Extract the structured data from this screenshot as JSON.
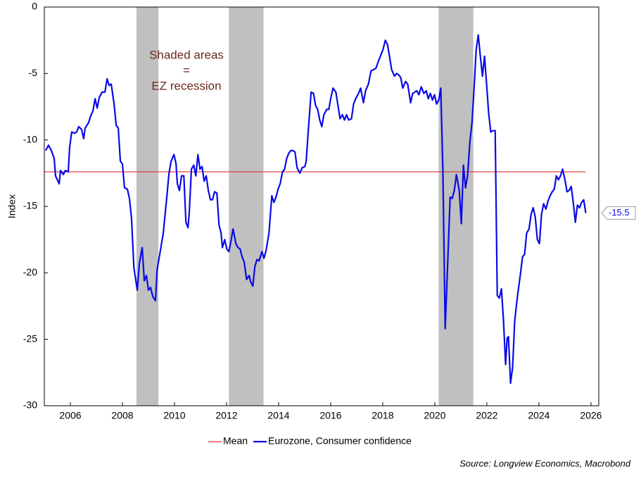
{
  "chart_data": {
    "type": "line",
    "y_label": "Index",
    "source": "Source: Longview Economics, Macrobond",
    "annotation": [
      "Shaded areas",
      "=",
      "EZ recession"
    ],
    "annotation_color": "#6b2a20",
    "shaded_regions": [
      [
        2008.54,
        2009.38
      ],
      [
        2012.09,
        2013.42
      ],
      [
        2020.15,
        2021.48
      ]
    ],
    "shade_color": "#c0c0c0",
    "xlim": [
      2005,
      2026.3
    ],
    "xticks": [
      2006,
      2008,
      2010,
      2012,
      2014,
      2016,
      2018,
      2020,
      2022,
      2024,
      2026
    ],
    "ylim": [
      -30,
      0
    ],
    "yticks": [
      0,
      -5,
      -10,
      -15,
      -20,
      -25,
      -30
    ],
    "end_label": -15.5,
    "mean": {
      "name": "Mean",
      "color": "#e0302a",
      "value": -12.4
    },
    "x": [
      2005.05,
      2005.16,
      2005.27,
      2005.38,
      2005.43,
      2005.57,
      2005.62,
      2005.73,
      2005.81,
      2005.92,
      2005.97,
      2006.05,
      2006.16,
      2006.24,
      2006.32,
      2006.43,
      2006.51,
      2006.57,
      2006.7,
      2006.78,
      2006.87,
      2006.95,
      2007.03,
      2007.11,
      2007.22,
      2007.33,
      2007.41,
      2007.49,
      2007.57,
      2007.68,
      2007.76,
      2007.84,
      2007.92,
      2008.0,
      2008.08,
      2008.19,
      2008.27,
      2008.35,
      2008.44,
      2008.57,
      2008.65,
      2008.76,
      2008.84,
      2008.92,
      2009.0,
      2009.08,
      2009.17,
      2009.27,
      2009.33,
      2009.46,
      2009.57,
      2009.68,
      2009.79,
      2009.87,
      2009.98,
      2010.06,
      2010.11,
      2010.19,
      2010.27,
      2010.36,
      2010.44,
      2010.52,
      2010.57,
      2010.65,
      2010.74,
      2010.82,
      2010.9,
      2010.98,
      2011.06,
      2011.14,
      2011.22,
      2011.3,
      2011.38,
      2011.46,
      2011.54,
      2011.63,
      2011.71,
      2011.79,
      2011.84,
      2011.93,
      2012.01,
      2012.09,
      2012.17,
      2012.25,
      2012.36,
      2012.44,
      2012.52,
      2012.6,
      2012.68,
      2012.77,
      2012.87,
      2012.93,
      2013.01,
      2013.09,
      2013.17,
      2013.25,
      2013.36,
      2013.44,
      2013.52,
      2013.63,
      2013.74,
      2013.82,
      2013.9,
      2013.98,
      2014.06,
      2014.15,
      2014.23,
      2014.31,
      2014.39,
      2014.47,
      2014.55,
      2014.63,
      2014.71,
      2014.82,
      2014.9,
      2015.01,
      2015.06,
      2015.14,
      2015.25,
      2015.34,
      2015.42,
      2015.5,
      2015.58,
      2015.66,
      2015.74,
      2015.85,
      2015.93,
      2015.99,
      2016.09,
      2016.2,
      2016.28,
      2016.36,
      2016.45,
      2016.53,
      2016.61,
      2016.69,
      2016.8,
      2016.88,
      2016.96,
      2017.07,
      2017.15,
      2017.26,
      2017.34,
      2017.45,
      2017.55,
      2017.66,
      2017.74,
      2017.83,
      2017.93,
      2018.01,
      2018.1,
      2018.18,
      2018.26,
      2018.34,
      2018.45,
      2018.53,
      2018.61,
      2018.69,
      2018.77,
      2018.88,
      2018.96,
      2019.07,
      2019.15,
      2019.23,
      2019.31,
      2019.39,
      2019.48,
      2019.58,
      2019.67,
      2019.75,
      2019.83,
      2019.91,
      2019.99,
      2020.07,
      2020.15,
      2020.23,
      2020.31,
      2020.4,
      2020.48,
      2020.59,
      2020.67,
      2020.75,
      2020.83,
      2020.94,
      2021.02,
      2021.1,
      2021.18,
      2021.26,
      2021.35,
      2021.43,
      2021.51,
      2021.59,
      2021.67,
      2021.75,
      2021.83,
      2021.91,
      2021.99,
      2022.07,
      2022.15,
      2022.24,
      2022.32,
      2022.4,
      2022.48,
      2022.56,
      2022.64,
      2022.72,
      2022.78,
      2022.83,
      2022.91,
      2022.99,
      2023.07,
      2023.18,
      2023.29,
      2023.37,
      2023.45,
      2023.53,
      2023.62,
      2023.7,
      2023.78,
      2023.86,
      2023.94,
      2024.02,
      2024.1,
      2024.18,
      2024.27,
      2024.35,
      2024.43,
      2024.51,
      2024.59,
      2024.67,
      2024.75,
      2024.83,
      2024.91,
      2025.0,
      2025.08,
      2025.16,
      2025.24,
      2025.32,
      2025.4,
      2025.48,
      2025.56,
      2025.64,
      2025.72,
      2025.8
    ],
    "series": [
      {
        "name": "Eurozone, Consumer confidence",
        "color": "#0a0ae6",
        "values": [
          -10.8,
          -10.4,
          -10.8,
          -11.4,
          -12.7,
          -13.3,
          -12.3,
          -12.6,
          -12.3,
          -12.4,
          -10.6,
          -9.4,
          -9.5,
          -9.4,
          -9.0,
          -9.2,
          -9.9,
          -9.1,
          -8.7,
          -8.2,
          -7.8,
          -6.9,
          -7.6,
          -6.8,
          -6.4,
          -6.4,
          -5.4,
          -5.9,
          -5.8,
          -7.3,
          -8.9,
          -9.1,
          -11.6,
          -11.8,
          -13.6,
          -13.7,
          -14.4,
          -15.9,
          -19.6,
          -21.3,
          -19.3,
          -18.1,
          -20.6,
          -20.2,
          -21.3,
          -21.1,
          -21.8,
          -22.1,
          -19.8,
          -18.3,
          -17.0,
          -14.8,
          -12.5,
          -11.6,
          -11.1,
          -11.8,
          -13.3,
          -13.8,
          -12.7,
          -12.7,
          -16.2,
          -16.6,
          -15.4,
          -12.2,
          -11.9,
          -12.7,
          -11.1,
          -12.2,
          -12.0,
          -13.1,
          -12.7,
          -13.8,
          -14.5,
          -14.5,
          -13.9,
          -14.0,
          -16.4,
          -17.0,
          -18.1,
          -17.5,
          -18.2,
          -18.4,
          -17.6,
          -16.7,
          -17.8,
          -18.1,
          -18.2,
          -18.8,
          -19.2,
          -20.5,
          -20.2,
          -20.7,
          -21.0,
          -19.5,
          -19.0,
          -19.1,
          -18.4,
          -18.9,
          -18.3,
          -17.0,
          -14.2,
          -14.7,
          -14.3,
          -13.7,
          -13.3,
          -12.4,
          -12.2,
          -11.4,
          -11.0,
          -10.8,
          -10.8,
          -10.9,
          -12.1,
          -12.5,
          -12.1,
          -12.0,
          -11.6,
          -9.3,
          -6.4,
          -6.5,
          -7.4,
          -7.7,
          -8.5,
          -9.0,
          -8.1,
          -7.7,
          -7.7,
          -7.0,
          -6.1,
          -6.4,
          -7.4,
          -8.4,
          -8.1,
          -8.5,
          -8.1,
          -8.5,
          -8.4,
          -7.3,
          -6.9,
          -6.5,
          -6.1,
          -7.2,
          -6.3,
          -5.8,
          -4.8,
          -4.7,
          -4.6,
          -4.1,
          -3.6,
          -3.2,
          -2.5,
          -2.8,
          -3.7,
          -4.7,
          -5.2,
          -5.0,
          -5.1,
          -5.3,
          -6.1,
          -5.6,
          -5.8,
          -7.2,
          -6.5,
          -6.4,
          -6.3,
          -6.6,
          -6.0,
          -6.5,
          -6.3,
          -6.9,
          -6.5,
          -7.0,
          -6.6,
          -7.3,
          -7.0,
          -6.1,
          -12.2,
          -24.2,
          -20.1,
          -14.3,
          -14.4,
          -13.8,
          -12.6,
          -13.8,
          -16.3,
          -11.9,
          -13.6,
          -12.7,
          -10.1,
          -8.7,
          -6.1,
          -3.2,
          -2.1,
          -3.7,
          -5.2,
          -3.7,
          -5.8,
          -8.0,
          -9.4,
          -9.3,
          -9.3,
          -21.7,
          -21.9,
          -21.2,
          -23.6,
          -26.9,
          -24.9,
          -24.8,
          -28.3,
          -27.1,
          -23.6,
          -21.7,
          -20.1,
          -18.8,
          -18.6,
          -17.0,
          -16.7,
          -15.6,
          -15.1,
          -15.8,
          -17.5,
          -17.8,
          -15.6,
          -14.8,
          -15.2,
          -14.6,
          -14.2,
          -13.9,
          -13.7,
          -12.7,
          -13.0,
          -12.7,
          -12.2,
          -13.0,
          -13.9,
          -13.8,
          -13.5,
          -14.7,
          -16.2,
          -14.9,
          -15.1,
          -14.7,
          -14.5,
          -15.5
        ]
      }
    ]
  }
}
